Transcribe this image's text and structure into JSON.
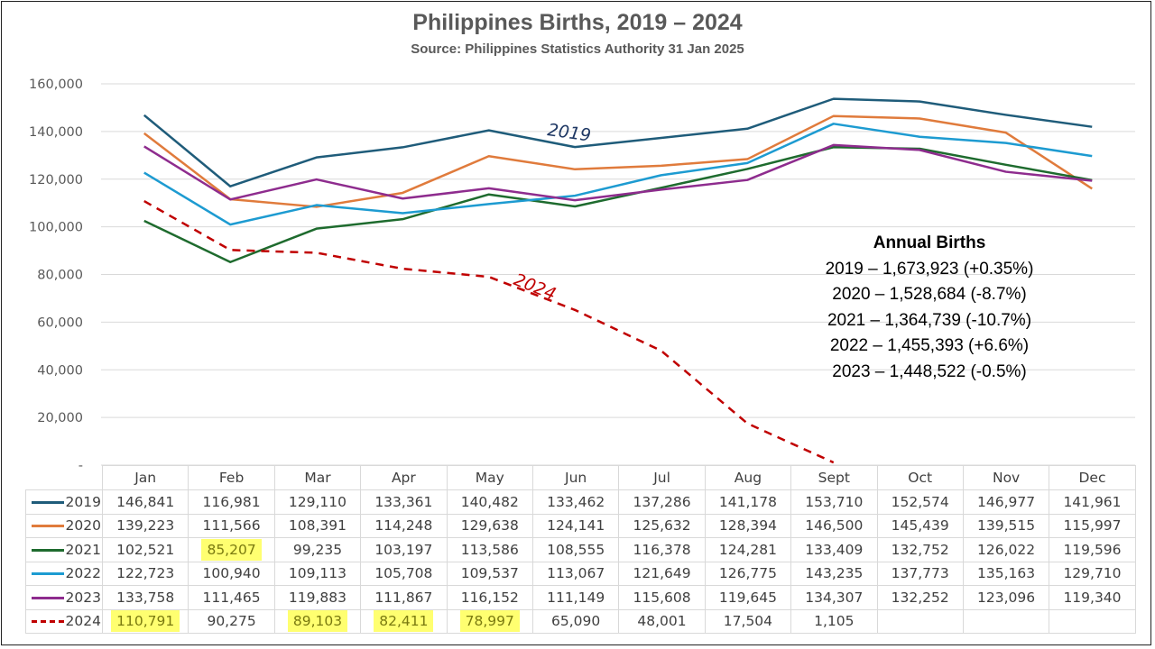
{
  "chart_data": {
    "type": "line",
    "title": "Philippines Births, 2019 – 2024",
    "subtitle": "Source: Philippines Statistics Authority 31 Jan 2025",
    "categories": [
      "Jan",
      "Feb",
      "Mar",
      "Apr",
      "May",
      "Jun",
      "Jul",
      "Aug",
      "Sept",
      "Oct",
      "Nov",
      "Dec"
    ],
    "ylim": [
      0,
      160000
    ],
    "yticks": [
      0,
      20000,
      40000,
      60000,
      80000,
      100000,
      120000,
      140000,
      160000
    ],
    "ytick_labels": [
      "-",
      "20,000",
      "40,000",
      "60,000",
      "80,000",
      "100,000",
      "120,000",
      "140,000",
      "160,000"
    ],
    "grid": true,
    "legend": "data-table",
    "series": [
      {
        "name": "2019",
        "color": "#1f5c7a",
        "dashed": false,
        "values": [
          146841,
          116981,
          129110,
          133361,
          140482,
          133462,
          137286,
          141178,
          153710,
          152574,
          146977,
          141961
        ],
        "labels": [
          "146,841",
          "116,981",
          "129,110",
          "133,361",
          "140,482",
          "133,462",
          "137,286",
          "141,178",
          "153,710",
          "152,574",
          "146,977",
          "141,961"
        ]
      },
      {
        "name": "2020",
        "color": "#e07b3c",
        "dashed": false,
        "values": [
          139223,
          111566,
          108391,
          114248,
          129638,
          124141,
          125632,
          128394,
          146500,
          145439,
          139515,
          115997
        ],
        "labels": [
          "139,223",
          "111,566",
          "108,391",
          "114,248",
          "129,638",
          "124,141",
          "125,632",
          "128,394",
          "146,500",
          "145,439",
          "139,515",
          "115,997"
        ]
      },
      {
        "name": "2021",
        "color": "#1e6b2e",
        "dashed": false,
        "values": [
          102521,
          85207,
          99235,
          103197,
          113586,
          108555,
          116378,
          124281,
          133409,
          132752,
          126022,
          119596
        ],
        "labels": [
          "102,521",
          "85,207",
          "99,235",
          "103,197",
          "113,586",
          "108,555",
          "116,378",
          "124,281",
          "133,409",
          "132,752",
          "126,022",
          "119,596"
        ]
      },
      {
        "name": "2022",
        "color": "#1d9bd1",
        "dashed": false,
        "values": [
          122723,
          100940,
          109113,
          105708,
          109537,
          113067,
          121649,
          126775,
          143235,
          137773,
          135163,
          129710
        ],
        "labels": [
          "122,723",
          "100,940",
          "109,113",
          "105,708",
          "109,537",
          "113,067",
          "121,649",
          "126,775",
          "143,235",
          "137,773",
          "135,163",
          "129,710"
        ]
      },
      {
        "name": "2023",
        "color": "#8e2c8e",
        "dashed": false,
        "values": [
          133758,
          111465,
          119883,
          111867,
          116152,
          111149,
          115608,
          119645,
          134307,
          132252,
          123096,
          119340
        ],
        "labels": [
          "133,758",
          "111,465",
          "119,883",
          "111,867",
          "116,152",
          "111,149",
          "115,608",
          "119,645",
          "134,307",
          "132,252",
          "123,096",
          "119,340"
        ]
      },
      {
        "name": "2024",
        "color": "#c00000",
        "dashed": true,
        "values": [
          110791,
          90275,
          89103,
          82411,
          78997,
          65090,
          48001,
          17504,
          1105,
          null,
          null,
          null
        ],
        "labels": [
          "110,791",
          "90,275",
          "89,103",
          "82,411",
          "78,997",
          "65,090",
          "48,001",
          "17,504",
          "1,105",
          "",
          "",
          ""
        ]
      }
    ],
    "highlighted_cells": [
      {
        "series": "2021",
        "month": "Feb"
      },
      {
        "series": "2024",
        "month": "Jan"
      },
      {
        "series": "2024",
        "month": "Mar"
      },
      {
        "series": "2024",
        "month": "Apr"
      },
      {
        "series": "2024",
        "month": "May"
      }
    ],
    "highlight_color": "#ffff70",
    "annotations": [
      {
        "text": "2019",
        "color": "#1f3864",
        "series": "2019"
      },
      {
        "text": "2024",
        "color": "#c00000",
        "series": "2024"
      }
    ]
  },
  "annual": {
    "heading": "Annual Births",
    "lines": [
      "2019 – 1,673,923 (+0.35%)",
      "2020 – 1,528,684 (-8.7%)",
      "2021 – 1,364,739 (-10.7%)",
      "2022 – 1,455,393 (+6.6%)",
      "2023 – 1,448,522 (-0.5%)"
    ]
  }
}
